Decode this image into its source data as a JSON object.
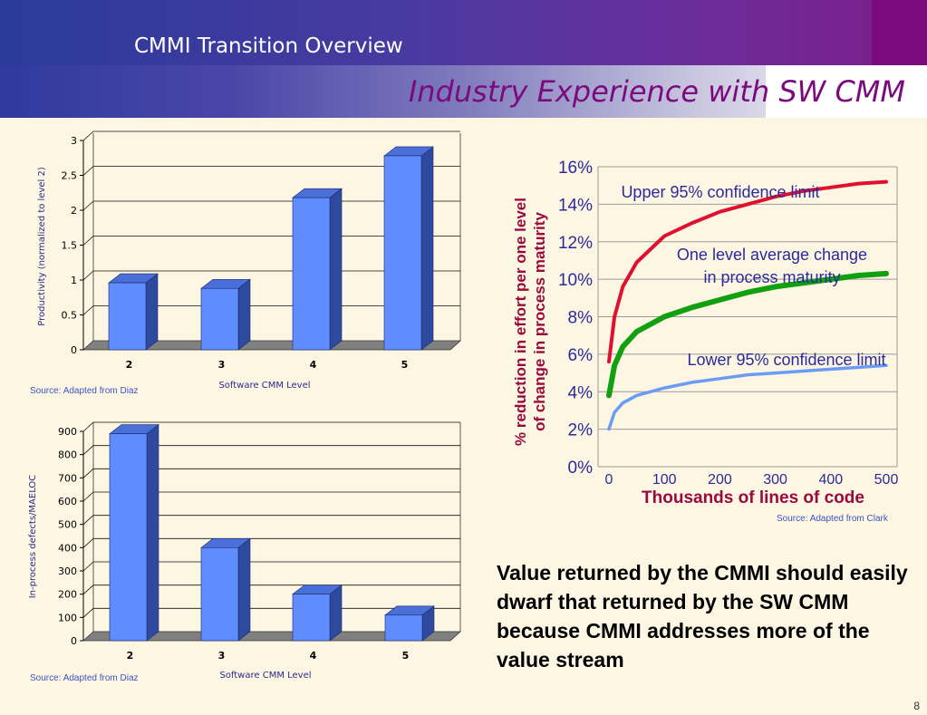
{
  "header": {
    "section_title": "CMMI Transition Overview",
    "slide_title": "Industry Experience with SW CMM"
  },
  "colors": {
    "bar_face": "#5f8cff",
    "bar_side": "#2e4a9e",
    "bar_top": "#4a6fd8",
    "upper_limit": "#e0102f",
    "average": "#10a010",
    "lower_limit": "#6b9bf5",
    "axis_title": "#9b0a3c",
    "curve_label": "#2a2a9c"
  },
  "chart_data": [
    {
      "type": "bar",
      "categories": [
        "2",
        "3",
        "4",
        "5"
      ],
      "values": [
        0.96,
        0.88,
        2.18,
        2.78
      ],
      "xlabel": "Software CMM Level",
      "ylabel": "Productivity (normalized to level 2)",
      "ylim": [
        0,
        3
      ],
      "yticks": [
        "0",
        "0.5",
        "1",
        "1.5",
        "2",
        "2.5",
        "3"
      ],
      "grid": true,
      "source": "Source: Adapted from Diaz"
    },
    {
      "type": "bar",
      "categories": [
        "2",
        "3",
        "4",
        "5"
      ],
      "values": [
        890,
        400,
        200,
        110
      ],
      "xlabel": "Software CMM  Level",
      "ylabel": "In-process defects/MAELOC",
      "ylim": [
        0,
        900
      ],
      "yticks": [
        "0",
        "100",
        "200",
        "300",
        "400",
        "500",
        "600",
        "700",
        "800",
        "900"
      ],
      "grid": true,
      "source": "Source: Adapted from Diaz"
    },
    {
      "type": "line",
      "xlabel": "Thousands of lines of code",
      "ylabel_line1": "% reduction in effort per one level",
      "ylabel_line2": "of change in process maturity",
      "xlim": [
        0,
        500
      ],
      "ylim": [
        0,
        16
      ],
      "xticks": [
        "0",
        "100",
        "200",
        "300",
        "400",
        "500"
      ],
      "yticks": [
        "0%",
        "2%",
        "4%",
        "6%",
        "8%",
        "10%",
        "12%",
        "14%",
        "16%"
      ],
      "grid": true,
      "series": [
        {
          "name": "Upper 95% confidence limit",
          "x": [
            0,
            10,
            25,
            50,
            100,
            150,
            200,
            250,
            300,
            350,
            400,
            450,
            500
          ],
          "y": [
            5.6,
            8.0,
            9.6,
            10.9,
            12.3,
            13.0,
            13.6,
            14.0,
            14.4,
            14.7,
            14.9,
            15.1,
            15.2
          ]
        },
        {
          "name": "One level average change in process maturity",
          "x": [
            0,
            10,
            25,
            50,
            100,
            150,
            200,
            250,
            300,
            350,
            400,
            450,
            500
          ],
          "y": [
            3.8,
            5.4,
            6.4,
            7.2,
            8.0,
            8.5,
            8.9,
            9.3,
            9.6,
            9.8,
            10.0,
            10.2,
            10.3
          ]
        },
        {
          "name": "Lower 95% confidence limit",
          "x": [
            0,
            10,
            25,
            50,
            100,
            150,
            200,
            250,
            300,
            350,
            400,
            450,
            500
          ],
          "y": [
            2.0,
            2.9,
            3.4,
            3.8,
            4.2,
            4.5,
            4.7,
            4.9,
            5.0,
            5.1,
            5.2,
            5.3,
            5.4
          ]
        }
      ],
      "source": "Source: Adapted from Clark"
    }
  ],
  "labels": {
    "upper_name": "Upper 95% confidence limit",
    "avg_line1": "One level average change",
    "avg_line2": "in process maturity",
    "lower_name": "Lower 95% confidence limit"
  },
  "note": "Value returned by the CMMI should easily dwarf that returned by the SW CMM because CMMI addresses more of the value stream",
  "page_number": "8"
}
